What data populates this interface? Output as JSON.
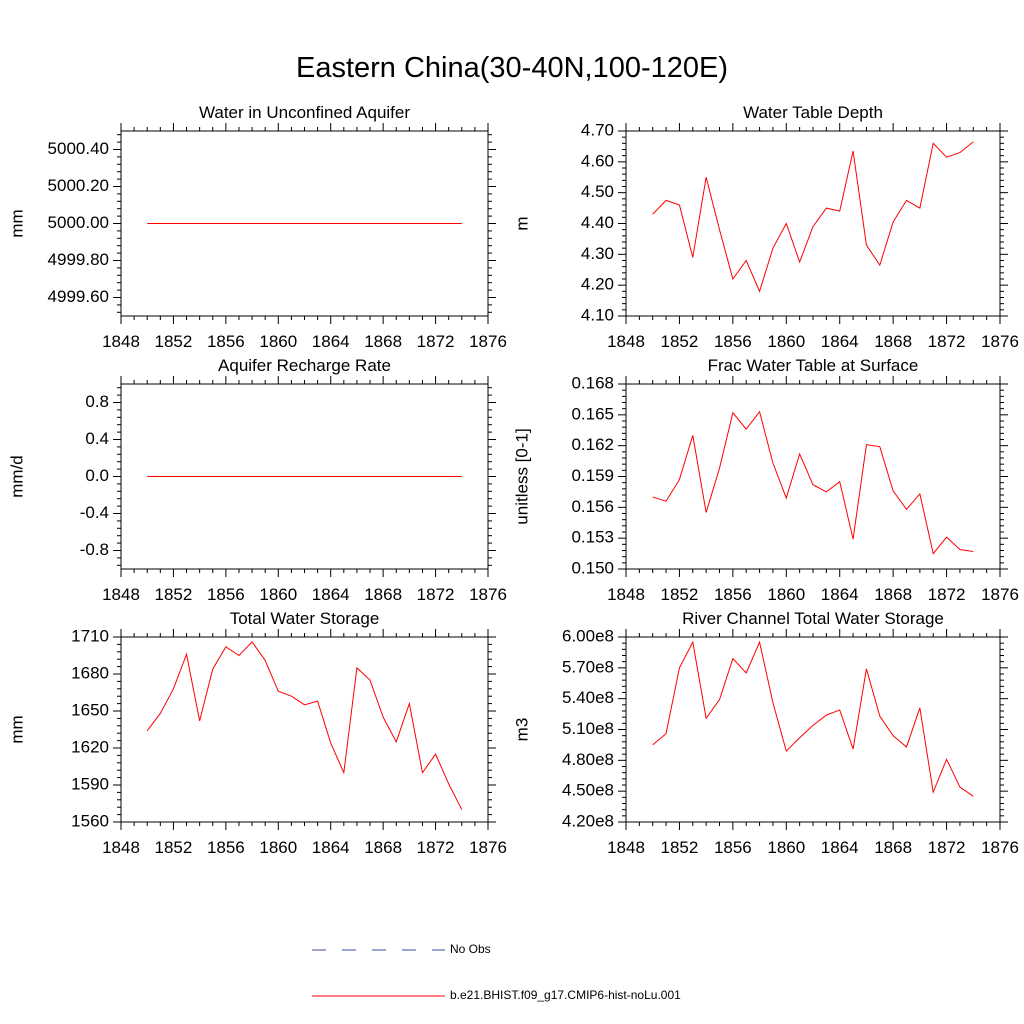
{
  "title": "Eastern China(30-40N,100-120E)",
  "colors": {
    "model": "#ff0000",
    "obs": "#3a4aa8",
    "axis": "#000000"
  },
  "legend": {
    "obs_label": "No Obs",
    "model_label": "b.e21.BHIST.f09_g17.CMIP6-hist-noLu.001"
  },
  "chart_data": [
    {
      "type": "line",
      "title": "Water in Unconfined Aquifer",
      "ylabel": "mm",
      "xlim": [
        1848,
        1876
      ],
      "ylim": [
        4999.5,
        5000.5
      ],
      "x_ticks": [
        "1848",
        "1852",
        "1856",
        "1860",
        "1864",
        "1868",
        "1872",
        "1876"
      ],
      "y_ticks": [
        4999.6,
        4999.8,
        5000.0,
        5000.2,
        5000.4
      ],
      "y_tick_labels": [
        "4999.60",
        "4999.80",
        "5000.00",
        "5000.20",
        "5000.40"
      ],
      "series": [
        {
          "x": [
            1850,
            1851,
            1852,
            1853,
            1854,
            1855,
            1856,
            1857,
            1858,
            1859,
            1860,
            1861,
            1862,
            1863,
            1864,
            1865,
            1866,
            1867,
            1868,
            1869,
            1870,
            1871,
            1872,
            1873,
            1874
          ],
          "values": [
            5000,
            5000,
            5000,
            5000,
            5000,
            5000,
            5000,
            5000,
            5000,
            5000,
            5000,
            5000,
            5000,
            5000,
            5000,
            5000,
            5000,
            5000,
            5000,
            5000,
            5000,
            5000,
            5000,
            5000,
            5000
          ]
        }
      ]
    },
    {
      "type": "line",
      "title": "Water Table Depth",
      "ylabel": "m",
      "xlim": [
        1848,
        1876
      ],
      "ylim": [
        4.1,
        4.7
      ],
      "x_ticks": [
        "1848",
        "1852",
        "1856",
        "1860",
        "1864",
        "1868",
        "1872",
        "1876"
      ],
      "y_ticks": [
        4.1,
        4.2,
        4.3,
        4.4,
        4.5,
        4.6,
        4.7
      ],
      "y_tick_labels": [
        "4.10",
        "4.20",
        "4.30",
        "4.40",
        "4.50",
        "4.60",
        "4.70"
      ],
      "series": [
        {
          "x": [
            1850,
            1851,
            1852,
            1853,
            1854,
            1855,
            1856,
            1857,
            1858,
            1859,
            1860,
            1861,
            1862,
            1863,
            1864,
            1865,
            1866,
            1867,
            1868,
            1869,
            1870,
            1871,
            1872,
            1873,
            1874
          ],
          "values": [
            4.43,
            4.475,
            4.46,
            4.29,
            4.55,
            4.38,
            4.22,
            4.28,
            4.18,
            4.32,
            4.4,
            4.275,
            4.39,
            4.45,
            4.44,
            4.635,
            4.33,
            4.265,
            4.405,
            4.475,
            4.45,
            4.66,
            4.615,
            4.63,
            4.665
          ]
        }
      ]
    },
    {
      "type": "line",
      "title": "Aquifer Recharge Rate",
      "ylabel": "mm/d",
      "xlim": [
        1848,
        1876
      ],
      "ylim": [
        -1.0,
        1.0
      ],
      "x_ticks": [
        "1848",
        "1852",
        "1856",
        "1860",
        "1864",
        "1868",
        "1872",
        "1876"
      ],
      "y_ticks": [
        -0.8,
        -0.4,
        0.0,
        0.4,
        0.8
      ],
      "y_tick_labels": [
        "-0.8",
        "-0.4",
        "0.0",
        "0.4",
        "0.8"
      ],
      "series": [
        {
          "x": [
            1850,
            1851,
            1852,
            1853,
            1854,
            1855,
            1856,
            1857,
            1858,
            1859,
            1860,
            1861,
            1862,
            1863,
            1864,
            1865,
            1866,
            1867,
            1868,
            1869,
            1870,
            1871,
            1872,
            1873,
            1874
          ],
          "values": [
            0,
            0,
            0,
            0,
            0,
            0,
            0,
            0,
            0,
            0,
            0,
            0,
            0,
            0,
            0,
            0,
            0,
            0,
            0,
            0,
            0,
            0,
            0,
            0,
            0
          ]
        }
      ]
    },
    {
      "type": "line",
      "title": "Frac Water Table at Surface",
      "ylabel": "unitless [0-1]",
      "xlim": [
        1848,
        1876
      ],
      "ylim": [
        0.15,
        0.168
      ],
      "x_ticks": [
        "1848",
        "1852",
        "1856",
        "1860",
        "1864",
        "1868",
        "1872",
        "1876"
      ],
      "y_ticks": [
        0.15,
        0.153,
        0.156,
        0.159,
        0.162,
        0.165,
        0.168
      ],
      "y_tick_labels": [
        "0.150",
        "0.153",
        "0.156",
        "0.159",
        "0.162",
        "0.165",
        "0.168"
      ],
      "series": [
        {
          "x": [
            1850,
            1851,
            1852,
            1853,
            1854,
            1855,
            1856,
            1857,
            1858,
            1859,
            1860,
            1861,
            1862,
            1863,
            1864,
            1865,
            1866,
            1867,
            1868,
            1869,
            1870,
            1871,
            1872,
            1873,
            1874
          ],
          "values": [
            0.157,
            0.1566,
            0.1587,
            0.163,
            0.1555,
            0.1598,
            0.1652,
            0.1636,
            0.1653,
            0.1603,
            0.1569,
            0.1612,
            0.1582,
            0.1575,
            0.1585,
            0.1529,
            0.1621,
            0.1619,
            0.1576,
            0.1558,
            0.1573,
            0.1515,
            0.1531,
            0.1519,
            0.1517
          ]
        }
      ]
    },
    {
      "type": "line",
      "title": "Total Water Storage",
      "ylabel": "mm",
      "xlim": [
        1848,
        1876
      ],
      "ylim": [
        1560,
        1710
      ],
      "x_ticks": [
        "1848",
        "1852",
        "1856",
        "1860",
        "1864",
        "1868",
        "1872",
        "1876"
      ],
      "y_ticks": [
        1560,
        1590,
        1620,
        1650,
        1680,
        1710
      ],
      "y_tick_labels": [
        "1560",
        "1590",
        "1620",
        "1650",
        "1680",
        "1710"
      ],
      "series": [
        {
          "x": [
            1850,
            1851,
            1852,
            1853,
            1854,
            1855,
            1856,
            1857,
            1858,
            1859,
            1860,
            1861,
            1862,
            1863,
            1864,
            1865,
            1866,
            1867,
            1868,
            1869,
            1870,
            1871,
            1872,
            1873,
            1874
          ],
          "values": [
            1634,
            1648,
            1668,
            1696,
            1642,
            1684,
            1702,
            1695,
            1706,
            1691,
            1666,
            1662,
            1655,
            1658,
            1624,
            1600,
            1685,
            1675,
            1645,
            1625,
            1656,
            1600,
            1615,
            1591,
            1570
          ]
        }
      ]
    },
    {
      "type": "line",
      "title": "River Channel Total Water Storage",
      "ylabel": "m3",
      "xlim": [
        1848,
        1876
      ],
      "ylim": [
        420000000.0,
        600000000.0
      ],
      "x_ticks": [
        "1848",
        "1852",
        "1856",
        "1860",
        "1864",
        "1868",
        "1872",
        "1876"
      ],
      "y_ticks": [
        420000000.0,
        450000000.0,
        480000000.0,
        510000000.0,
        540000000.0,
        570000000.0,
        600000000.0
      ],
      "y_tick_labels": [
        "4.20e8",
        "4.50e8",
        "4.80e8",
        "5.10e8",
        "5.40e8",
        "5.70e8",
        "6.00e8"
      ],
      "series": [
        {
          "x": [
            1850,
            1851,
            1852,
            1853,
            1854,
            1855,
            1856,
            1857,
            1858,
            1859,
            1860,
            1861,
            1862,
            1863,
            1864,
            1865,
            1866,
            1867,
            1868,
            1869,
            1870,
            1871,
            1872,
            1873,
            1874
          ],
          "values": [
            495000000.0,
            506000000.0,
            570000000.0,
            595000000.0,
            521000000.0,
            539000000.0,
            579000000.0,
            565000000.0,
            595000000.0,
            536000000.0,
            489000000.0,
            502000000.0,
            514000000.0,
            524000000.0,
            529000000.0,
            491000000.0,
            569000000.0,
            523000000.0,
            504000000.0,
            493000000.0,
            531000000.0,
            449000000.0,
            481000000.0,
            454000000.0,
            445000000.0
          ]
        }
      ]
    }
  ]
}
